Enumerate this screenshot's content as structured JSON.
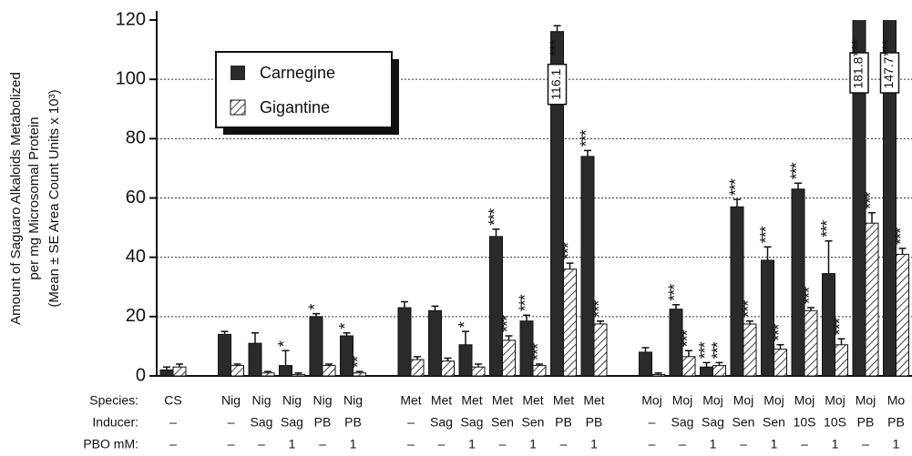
{
  "chart_data": {
    "type": "bar",
    "y_label": [
      "Amount of Saguaro Alkaloids Metabolized",
      "per mg Microsomal Protein",
      "(Mean ± SE Area Count Units x 10³)"
    ],
    "row_labels": [
      "Species:",
      "Inducer:",
      "PBO mM:"
    ],
    "species": [
      "CS",
      "Nig",
      "Nig",
      "Nig",
      "Nig",
      "Nig",
      "Met",
      "Met",
      "Met",
      "Met",
      "Met",
      "Met",
      "Met",
      "Moj",
      "Moj",
      "Moj",
      "Moj",
      "Moj",
      "Moj",
      "Moj",
      "Moj",
      "Mo"
    ],
    "inducer": [
      "–",
      "–",
      "Sag",
      "Sag",
      "PB",
      "PB",
      "–",
      "Sag",
      "Sag",
      "Sen",
      "Sen",
      "PB",
      "PB",
      "–",
      "Sag",
      "Sag",
      "Sen",
      "Sen",
      "10S",
      "10S",
      "PB",
      "PB"
    ],
    "pbo": [
      "–",
      "–",
      "–",
      "1",
      "–",
      "1",
      "–",
      "–",
      "1",
      "–",
      "1",
      "–",
      "1",
      "–",
      "–",
      "1",
      "–",
      "1",
      "–",
      "1",
      "–",
      "1"
    ],
    "series": [
      {
        "name": "Carnegine",
        "color": "#2a2a2a",
        "values": [
          2,
          14,
          11,
          3.5,
          20,
          13.5,
          23,
          22,
          10.5,
          47,
          18.5,
          116.1,
          74,
          8,
          22.5,
          3,
          57,
          39,
          63,
          34.5,
          181.8,
          147.7
        ],
        "value_labels": [
          null,
          null,
          null,
          null,
          null,
          null,
          null,
          null,
          null,
          null,
          null,
          "116.1",
          null,
          null,
          null,
          null,
          null,
          null,
          null,
          null,
          "181.8",
          "147.7"
        ],
        "errors": [
          1,
          1,
          3.5,
          5,
          1,
          1,
          2,
          1.5,
          4.5,
          2.5,
          2,
          2,
          2,
          1.5,
          1.5,
          1.5,
          2.5,
          4.5,
          2,
          11,
          7,
          9
        ],
        "stars": [
          null,
          null,
          null,
          "*",
          "*",
          "*",
          null,
          null,
          "*",
          "***",
          "***",
          "***",
          "***",
          null,
          "***",
          "***",
          "***",
          "***",
          "***",
          "***",
          "***",
          "***"
        ]
      },
      {
        "name": "Gigantine",
        "color": "#ffffff",
        "values": [
          3,
          3.5,
          1,
          0.5,
          3.5,
          1,
          5.5,
          5,
          3,
          12,
          3.5,
          36,
          17.5,
          0.5,
          6.5,
          3.5,
          17.5,
          9,
          22,
          10.5,
          51.5,
          41
        ],
        "errors": [
          1,
          0.5,
          0.5,
          0.5,
          0.5,
          0.5,
          1,
          1,
          1,
          1.5,
          0.5,
          2,
          1,
          0.5,
          2,
          1,
          1,
          1.5,
          1,
          2,
          3.5,
          2
        ],
        "stars": [
          null,
          null,
          null,
          null,
          null,
          "**",
          null,
          null,
          null,
          "***",
          "***",
          "***",
          "***",
          null,
          "***",
          "***",
          "***",
          "***",
          "***",
          "***",
          "***",
          "***"
        ]
      }
    ],
    "ylim": [
      0,
      120
    ],
    "yticks": [
      0,
      20,
      40,
      60,
      80,
      100,
      120
    ],
    "grid": true
  }
}
